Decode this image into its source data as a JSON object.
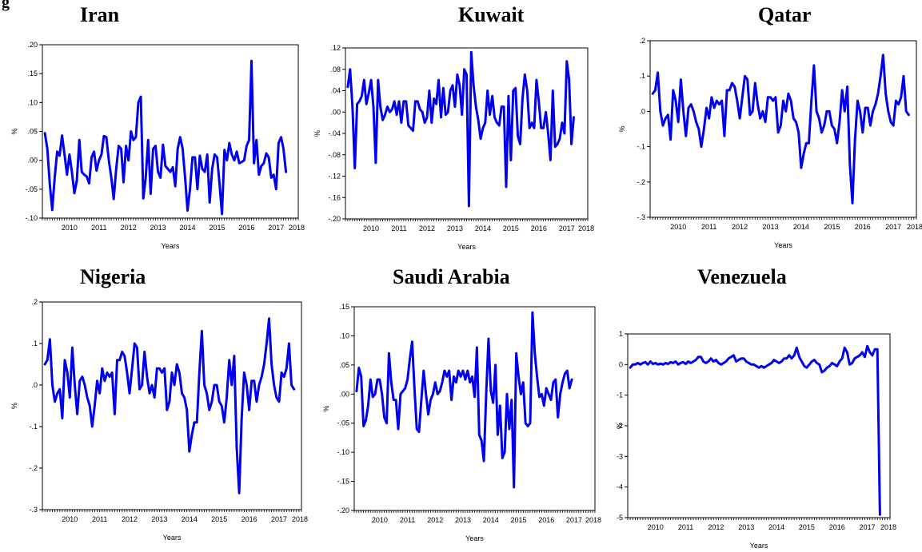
{
  "figure_label": "g",
  "chart_data": [
    {
      "type": "line",
      "title": "Iran",
      "xlabel": "Years",
      "ylabel": "%",
      "x_ticks": [
        "2010",
        "2011",
        "2012",
        "2013",
        "2014",
        "2015",
        "2016",
        "2017",
        "2018"
      ],
      "y_ticks": [
        ".20",
        ".15",
        ".10",
        ".05",
        ".00",
        "-.05",
        "-.10"
      ],
      "ylim": [
        -0.1,
        0.2
      ],
      "xlim": [
        2009.583,
        2018.25
      ],
      "grid": false,
      "line_color": "#0000ee",
      "series": [
        {
          "start": "2009-09",
          "values": [
            0.047,
            0.02,
            -0.04,
            -0.086,
            -0.03,
            0.015,
            0.008,
            0.043,
            0.01,
            -0.025,
            0.01,
            -0.02,
            -0.057,
            -0.035,
            0.035,
            -0.02,
            -0.025,
            -0.028,
            -0.04,
            0.005,
            0.015,
            -0.018,
            0.0,
            0.01,
            0.042,
            0.04,
            0.0,
            -0.03,
            -0.067,
            -0.015,
            0.025,
            0.02,
            -0.038,
            0.025,
            0.0,
            0.05,
            0.035,
            0.04,
            0.1,
            0.11,
            -0.066,
            -0.03,
            0.035,
            -0.058,
            0.02,
            0.025,
            -0.02,
            -0.03,
            0.027,
            -0.01,
            -0.015,
            -0.02,
            -0.012,
            -0.045,
            0.02,
            0.04,
            0.02,
            -0.03,
            -0.087,
            -0.05,
            0.005,
            0.005,
            -0.05,
            0.008,
            -0.015,
            -0.02,
            0.01,
            -0.073,
            -0.015,
            0.01,
            0.005,
            -0.04,
            -0.093,
            0.018,
            0.0,
            0.03,
            0.01,
            0.0,
            0.015,
            -0.005,
            -0.003,
            0.0,
            0.025,
            0.035,
            0.172,
            -0.005,
            0.035,
            -0.025,
            -0.01,
            -0.005,
            0.012,
            0.005,
            -0.03,
            -0.025,
            -0.05,
            0.03,
            0.04,
            0.02,
            -0.02
          ]
        }
      ]
    },
    {
      "type": "line",
      "title": "Kuwait",
      "xlabel": "Years",
      "ylabel": "%",
      "x_ticks": [
        "2010",
        "2011",
        "2012",
        "2013",
        "2014",
        "2015",
        "2016",
        "2017",
        "2018"
      ],
      "y_ticks": [
        ".12",
        ".08",
        ".04",
        ".00",
        "-.04",
        "-.08",
        "-.12",
        "-.16",
        "-.20"
      ],
      "ylim": [
        -0.2,
        0.12
      ],
      "xlim": [
        2009.583,
        2018.25
      ],
      "grid": false,
      "line_color": "#0000ee",
      "series": [
        {
          "start": "2009-09",
          "values": [
            0.047,
            0.08,
            0.01,
            -0.105,
            0.015,
            0.02,
            0.03,
            0.06,
            0.015,
            0.035,
            0.06,
            0.01,
            -0.095,
            0.06,
            0.01,
            -0.015,
            -0.005,
            0.01,
            0.0,
            0.005,
            0.02,
            -0.005,
            0.02,
            -0.02,
            0.02,
            0.02,
            -0.025,
            -0.03,
            -0.035,
            0.02,
            0.02,
            0.005,
            0.0,
            -0.02,
            -0.01,
            0.04,
            -0.02,
            0.025,
            0.015,
            0.06,
            -0.01,
            0.045,
            -0.005,
            0.0,
            0.04,
            0.05,
            0.01,
            0.07,
            0.05,
            -0.005,
            0.08,
            0.07,
            -0.176,
            0.112,
            0.05,
            0.01,
            -0.015,
            -0.05,
            -0.03,
            -0.02,
            0.04,
            -0.005,
            0.03,
            -0.01,
            -0.02,
            -0.025,
            0.01,
            0.01,
            -0.14,
            0.03,
            -0.09,
            0.04,
            0.045,
            -0.045,
            -0.06,
            0.025,
            0.07,
            0.04,
            -0.03,
            -0.02,
            -0.03,
            0.06,
            0.02,
            -0.03,
            -0.03,
            0.0,
            -0.04,
            -0.09,
            0.04,
            -0.065,
            -0.06,
            -0.05,
            -0.02,
            -0.04,
            0.095,
            0.06,
            -0.06,
            -0.01
          ]
        }
      ]
    },
    {
      "type": "line",
      "title": "Qatar",
      "xlabel": "Years",
      "ylabel": "%",
      "x_ticks": [
        "2010",
        "2011",
        "2012",
        "2013",
        "2014",
        "2015",
        "2016",
        "2017",
        "2018"
      ],
      "y_ticks": [
        ".2",
        ".1",
        ".0",
        "-.1",
        "-.2",
        "-.3"
      ],
      "ylim": [
        -0.3,
        0.2
      ],
      "xlim": [
        2009.583,
        2018.25
      ],
      "grid": false,
      "line_color": "#0000ee",
      "series": [
        {
          "start": "2009-09",
          "values": [
            0.05,
            0.06,
            0.11,
            0.0,
            -0.04,
            -0.02,
            -0.01,
            -0.08,
            0.06,
            0.03,
            -0.03,
            0.09,
            0.0,
            -0.07,
            0.01,
            0.02,
            0.0,
            -0.03,
            -0.05,
            -0.1,
            -0.05,
            0.01,
            -0.02,
            0.04,
            0.01,
            0.03,
            0.02,
            0.03,
            -0.07,
            0.06,
            0.06,
            0.08,
            0.07,
            0.03,
            -0.02,
            0.04,
            0.1,
            0.09,
            -0.01,
            0.0,
            0.08,
            0.02,
            -0.02,
            0.0,
            -0.03,
            0.04,
            0.04,
            0.03,
            0.04,
            -0.06,
            -0.04,
            0.03,
            0.0,
            0.05,
            0.03,
            -0.02,
            -0.03,
            -0.06,
            -0.16,
            -0.12,
            -0.09,
            -0.09,
            0.03,
            0.13,
            0.0,
            -0.02,
            -0.06,
            -0.04,
            0.0,
            0.0,
            -0.04,
            -0.05,
            -0.09,
            -0.03,
            0.06,
            0.0,
            0.07,
            -0.15,
            -0.26,
            -0.08,
            0.03,
            0.0,
            -0.06,
            0.01,
            0.01,
            -0.04,
            0.0,
            0.02,
            0.05,
            0.1,
            0.16,
            0.05,
            0.0,
            -0.03,
            -0.04,
            0.03,
            0.02,
            0.04,
            0.1,
            0.0,
            -0.01
          ]
        }
      ]
    },
    {
      "type": "line",
      "title": "Nigeria",
      "xlabel": "Years",
      "ylabel": "%",
      "x_ticks": [
        "2010",
        "2011",
        "2012",
        "2013",
        "2014",
        "2015",
        "2016",
        "2017",
        "2018"
      ],
      "y_ticks": [
        ".2",
        ".1",
        ".0",
        "-.1",
        "-.2",
        "-.3"
      ],
      "ylim": [
        -0.3,
        0.2
      ],
      "xlim": [
        2009.583,
        2018.25
      ],
      "grid": false,
      "line_color": "#0000ee",
      "series": [
        {
          "start": "2009-09",
          "values": [
            0.05,
            0.06,
            0.11,
            0.0,
            -0.04,
            -0.02,
            -0.01,
            -0.08,
            0.06,
            0.03,
            -0.03,
            0.09,
            0.0,
            -0.07,
            0.01,
            0.02,
            0.0,
            -0.03,
            -0.05,
            -0.1,
            -0.05,
            0.01,
            -0.02,
            0.04,
            0.01,
            0.03,
            0.02,
            0.03,
            -0.07,
            0.06,
            0.06,
            0.08,
            0.07,
            0.03,
            -0.02,
            0.04,
            0.1,
            0.09,
            -0.01,
            0.0,
            0.08,
            0.02,
            -0.02,
            0.0,
            -0.03,
            0.04,
            0.04,
            0.03,
            0.04,
            -0.06,
            -0.04,
            0.03,
            0.0,
            0.05,
            0.03,
            -0.02,
            -0.03,
            -0.06,
            -0.16,
            -0.12,
            -0.09,
            -0.09,
            0.03,
            0.13,
            0.0,
            -0.02,
            -0.06,
            -0.04,
            0.0,
            0.0,
            -0.04,
            -0.05,
            -0.09,
            -0.03,
            0.06,
            0.0,
            0.07,
            -0.15,
            -0.26,
            -0.08,
            0.03,
            0.0,
            -0.06,
            0.01,
            0.01,
            -0.04,
            0.0,
            0.02,
            0.05,
            0.1,
            0.16,
            0.05,
            0.0,
            -0.03,
            -0.04,
            0.03,
            0.02,
            0.04,
            0.1,
            0.0,
            -0.01
          ]
        }
      ]
    },
    {
      "type": "line",
      "title": "Saudi Arabia",
      "xlabel": "Years",
      "ylabel": "%",
      "x_ticks": [
        "2010",
        "2011",
        "2012",
        "2013",
        "2014",
        "2015",
        "2016",
        "2017",
        "2018"
      ],
      "y_ticks": [
        ".15",
        ".10",
        ".05",
        ".00",
        "-.05",
        "-.10",
        "-.15",
        "-.20"
      ],
      "ylim": [
        -0.2,
        0.15
      ],
      "xlim": [
        2009.583,
        2018.25
      ],
      "grid": false,
      "line_color": "#0000ee",
      "series": [
        {
          "start": "2009-09",
          "values": [
            0.005,
            0.045,
            0.03,
            -0.055,
            -0.045,
            -0.02,
            0.025,
            -0.005,
            0.0,
            0.025,
            0.025,
            0.0,
            -0.04,
            -0.05,
            0.07,
            0.02,
            -0.01,
            -0.01,
            -0.06,
            0.0,
            0.005,
            0.01,
            0.025,
            0.06,
            0.09,
            0.01,
            -0.06,
            -0.065,
            -0.01,
            0.04,
            0.0,
            -0.035,
            -0.01,
            0.0,
            0.02,
            0.0,
            0.005,
            0.02,
            0.04,
            0.03,
            0.04,
            -0.01,
            0.03,
            0.02,
            0.04,
            0.03,
            0.04,
            0.025,
            0.04,
            0.02,
            0.03,
            -0.005,
            0.08,
            -0.07,
            -0.08,
            -0.115,
            0.0,
            0.095,
            0.005,
            -0.015,
            0.05,
            -0.07,
            -0.02,
            -0.11,
            -0.1,
            0.0,
            -0.06,
            -0.01,
            -0.16,
            0.07,
            0.03,
            0.0,
            0.02,
            -0.05,
            -0.055,
            -0.05,
            0.14,
            0.07,
            0.03,
            -0.005,
            0.0,
            -0.02,
            0.01,
            0.0,
            -0.01,
            0.02,
            0.025,
            -0.04,
            0.0,
            0.02,
            0.035,
            0.04,
            0.01,
            0.025
          ]
        }
      ]
    },
    {
      "type": "line",
      "title": "Venezuela",
      "xlabel": "Years",
      "ylabel": "%",
      "x_ticks": [
        "2010",
        "2011",
        "2012",
        "2013",
        "2014",
        "2015",
        "2016",
        "2017",
        "2018"
      ],
      "y_ticks": [
        "1",
        "0",
        "-1",
        "-2",
        "-3",
        "-4",
        "-5"
      ],
      "ylim": [
        -5,
        1
      ],
      "xlim": [
        2009.583,
        2018.25
      ],
      "grid": false,
      "line_color": "#0000ee",
      "series": [
        {
          "start": "2009-09",
          "values": [
            -0.1,
            0.0,
            0.0,
            0.05,
            0.0,
            0.05,
            0.08,
            0.0,
            0.1,
            0.02,
            0.05,
            0.0,
            0.03,
            0.0,
            0.05,
            0.02,
            0.08,
            0.05,
            0.1,
            0.0,
            0.05,
            0.08,
            0.02,
            0.1,
            0.05,
            0.1,
            0.15,
            0.25,
            0.25,
            0.1,
            0.05,
            0.1,
            0.2,
            0.1,
            0.15,
            0.05,
            0.0,
            0.05,
            0.1,
            0.2,
            0.25,
            0.3,
            0.1,
            0.15,
            0.2,
            0.2,
            0.1,
            0.05,
            0.0,
            0.0,
            -0.05,
            -0.1,
            -0.05,
            -0.1,
            -0.05,
            0.0,
            0.05,
            0.15,
            0.1,
            0.05,
            0.1,
            0.2,
            0.2,
            0.3,
            0.2,
            0.3,
            0.55,
            0.25,
            0.1,
            -0.05,
            -0.1,
            0.0,
            0.1,
            0.15,
            0.05,
            0.0,
            -0.25,
            -0.2,
            -0.1,
            -0.05,
            0.05,
            0.0,
            -0.05,
            0.1,
            0.2,
            0.55,
            0.4,
            0.0,
            0.05,
            0.2,
            0.25,
            0.3,
            0.4,
            0.25,
            0.6,
            0.4,
            0.3,
            0.5,
            0.5,
            -4.9
          ]
        }
      ]
    }
  ]
}
